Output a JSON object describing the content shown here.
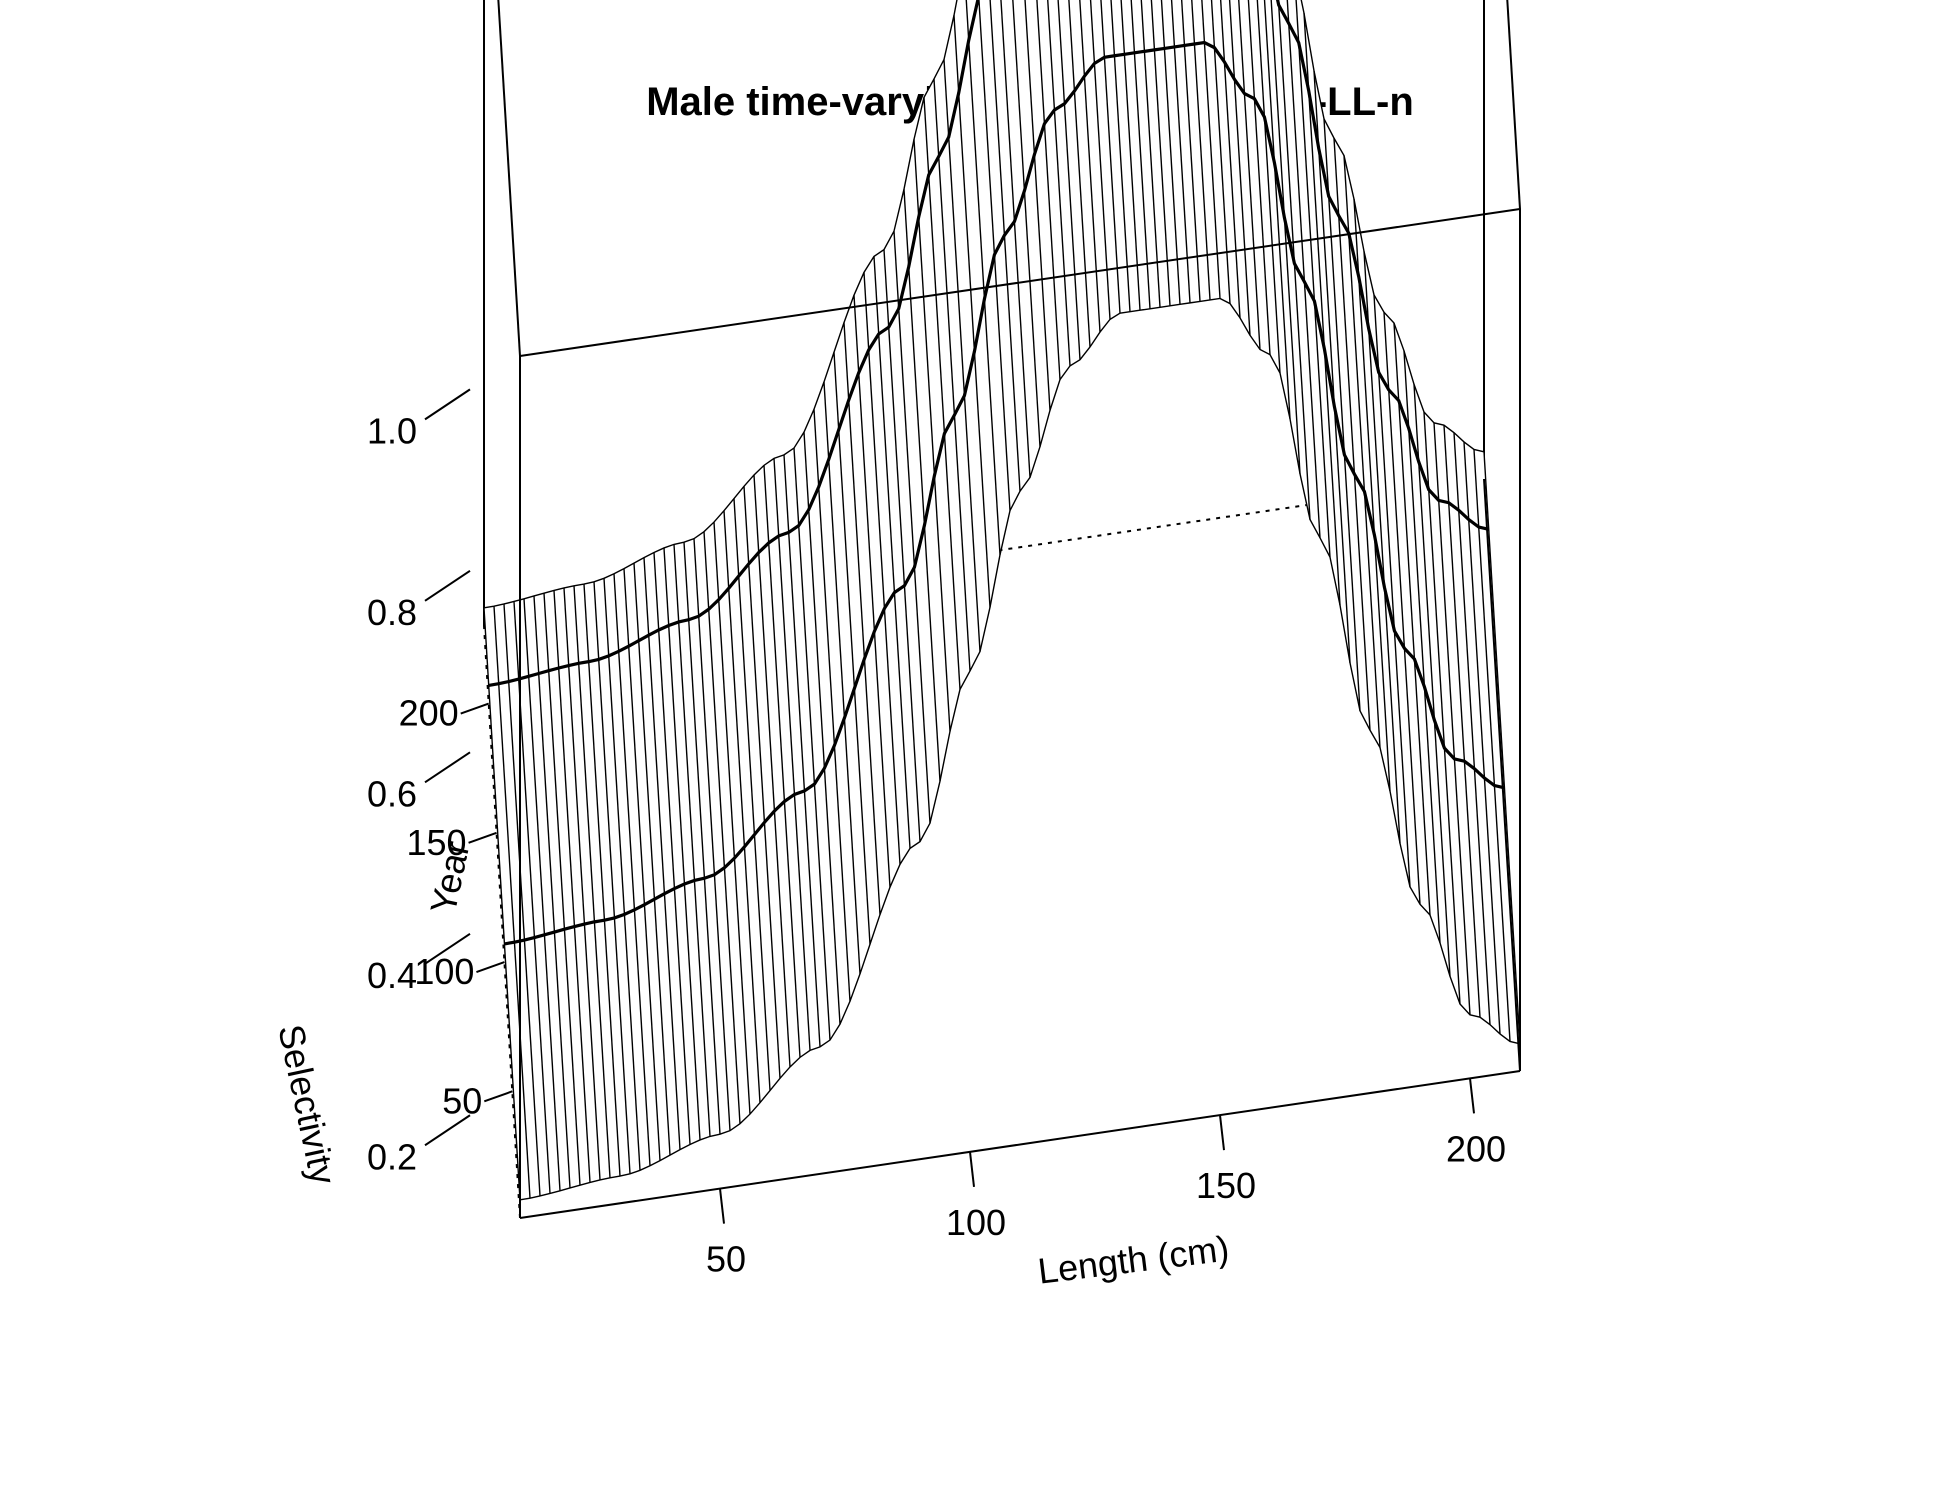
{
  "chart_data": {
    "type": "surface",
    "title": "Male time-varying selectivity for A4-LL-n",
    "xlabel": "Length (cm)",
    "ylabel": "Year",
    "zlabel": "Selectivity",
    "xlim": [
      10,
      210
    ],
    "ylim": [
      1,
      230
    ],
    "zlim": [
      0.1,
      1.05
    ],
    "x_ticks": [
      "50",
      "100",
      "150",
      "200"
    ],
    "y_ticks": [
      "50",
      "100",
      "150",
      "200"
    ],
    "z_ticks": [
      "0.2",
      "0.4",
      "0.6",
      "0.8",
      "1.0"
    ],
    "selectivity_by_length": {
      "length": [
        10,
        30,
        50,
        70,
        90,
        100,
        110,
        120,
        130,
        140,
        150,
        160,
        170,
        180,
        190,
        200,
        210
      ],
      "selectivity": [
        0.12,
        0.13,
        0.16,
        0.24,
        0.45,
        0.63,
        0.82,
        0.95,
        1.0,
        1.0,
        1.0,
        0.93,
        0.72,
        0.5,
        0.3,
        0.17,
        0.13
      ]
    },
    "highlighted_years": [
      100,
      200
    ],
    "year_step": 2,
    "box": true
  }
}
